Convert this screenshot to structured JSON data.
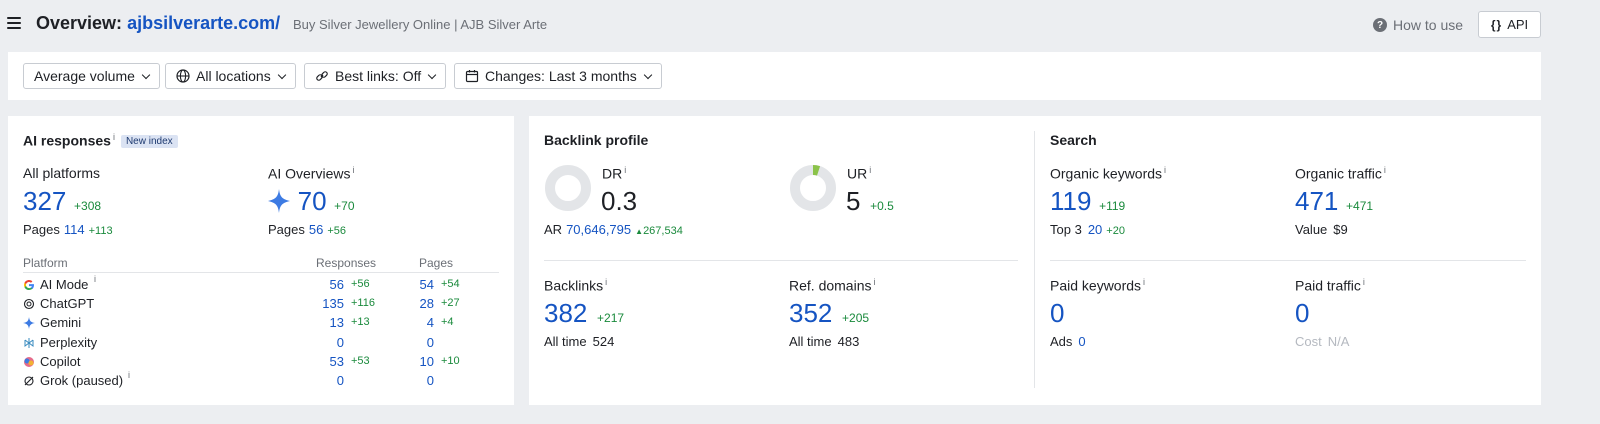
{
  "header": {
    "title_prefix": "Overview:",
    "domain": "ajbsilverarte.com/",
    "subtitle": "Buy Silver Jewellery Online | AJB Silver Arte",
    "how_to_use": "How to use",
    "api": "API"
  },
  "filters": {
    "volume": "Average volume",
    "locations": "All locations",
    "best_links": "Best links: Off",
    "changes": "Changes: Last 3 months"
  },
  "ai": {
    "title": "AI responses",
    "badge": "New index",
    "all_platforms": {
      "label": "All platforms",
      "value": "327",
      "delta": "+308",
      "pages_label": "Pages",
      "pages": "114",
      "pages_delta": "+113"
    },
    "ai_overviews": {
      "label": "AI Overviews",
      "value": "70",
      "delta": "+70",
      "pages_label": "Pages",
      "pages": "56",
      "pages_delta": "+56"
    },
    "columns": {
      "platform": "Platform",
      "responses": "Responses",
      "pages": "Pages"
    },
    "rows": [
      {
        "name": "AI Mode",
        "icon": "google-icon",
        "responses": "56",
        "responses_delta": "+56",
        "pages": "54",
        "pages_delta": "+54"
      },
      {
        "name": "ChatGPT",
        "icon": "chatgpt-icon",
        "responses": "135",
        "responses_delta": "+116",
        "pages": "28",
        "pages_delta": "+27"
      },
      {
        "name": "Gemini",
        "icon": "gemini-icon",
        "responses": "13",
        "responses_delta": "+13",
        "pages": "4",
        "pages_delta": "+4"
      },
      {
        "name": "Perplexity",
        "icon": "perplexity-icon",
        "responses": "0",
        "responses_delta": "",
        "pages": "0",
        "pages_delta": ""
      },
      {
        "name": "Copilot",
        "icon": "copilot-icon",
        "responses": "53",
        "responses_delta": "+53",
        "pages": "10",
        "pages_delta": "+10"
      },
      {
        "name": "Grok (paused)",
        "icon": "grok-icon",
        "responses": "0",
        "responses_delta": "",
        "pages": "0",
        "pages_delta": ""
      }
    ]
  },
  "backlink": {
    "title": "Backlink profile",
    "dr": {
      "label": "DR",
      "value": "0.3"
    },
    "ur": {
      "label": "UR",
      "value": "5",
      "delta": "+0.5"
    },
    "ar": {
      "label": "AR",
      "value": "70,646,795",
      "delta": "267,534"
    },
    "backlinks": {
      "label": "Backlinks",
      "value": "382",
      "delta": "+217",
      "all_time_label": "All time",
      "all_time": "524"
    },
    "ref_domains": {
      "label": "Ref. domains",
      "value": "352",
      "delta": "+205",
      "all_time_label": "All time",
      "all_time": "483"
    }
  },
  "search": {
    "title": "Search",
    "organic_keywords": {
      "label": "Organic keywords",
      "value": "119",
      "delta": "+119",
      "top3_label": "Top 3",
      "top3": "20",
      "top3_delta": "+20"
    },
    "organic_traffic": {
      "label": "Organic traffic",
      "value": "471",
      "delta": "+471",
      "value_label": "Value",
      "money": "$9"
    },
    "paid_keywords": {
      "label": "Paid keywords",
      "value": "0",
      "ads_label": "Ads",
      "ads": "0"
    },
    "paid_traffic": {
      "label": "Paid traffic",
      "value": "0",
      "cost_label": "Cost",
      "cost": "N/A"
    }
  },
  "colors": {
    "accent": "#1554c2",
    "positive": "#1a8a3c",
    "ur_gauge": "#8bc34a"
  },
  "ur_gauge_fraction": 0.05
}
